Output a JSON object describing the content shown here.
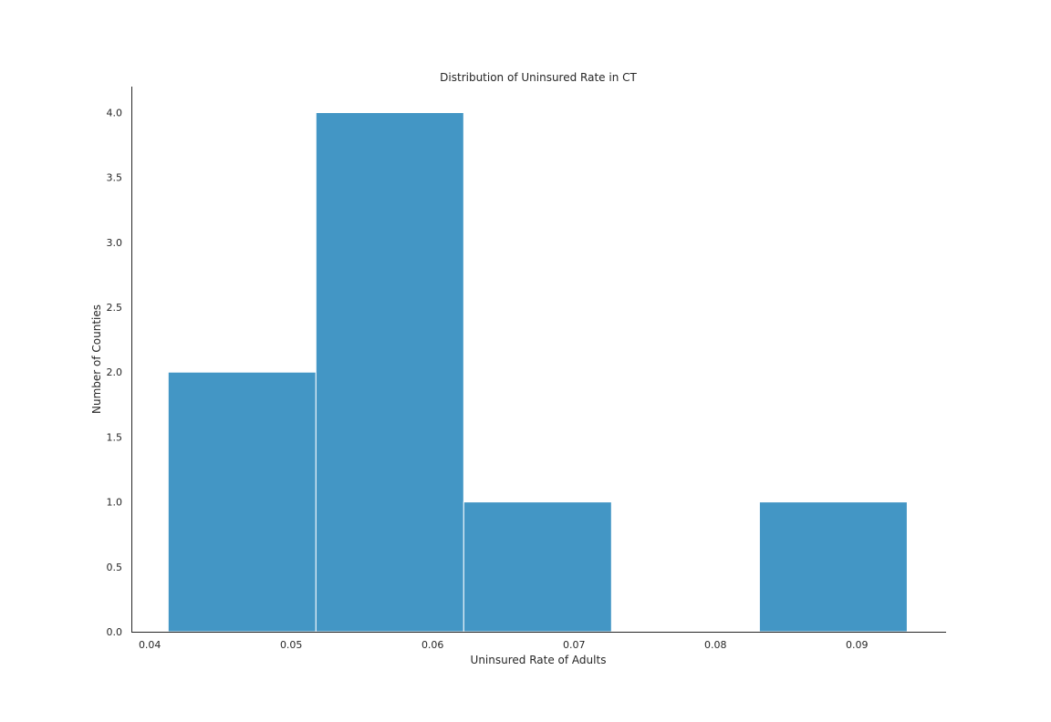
{
  "chart_data": {
    "type": "bar",
    "title": "Distribution of Uninsured Rate in CT",
    "xlabel": "Uninsured Rate of Adults",
    "ylabel": "Number of Counties",
    "bins": [
      {
        "x0": 0.0413,
        "x1": 0.05175,
        "count": 2
      },
      {
        "x0": 0.05175,
        "x1": 0.0622,
        "count": 4
      },
      {
        "x0": 0.0622,
        "x1": 0.07265,
        "count": 1
      },
      {
        "x0": 0.07265,
        "x1": 0.0831,
        "count": 0
      },
      {
        "x0": 0.0831,
        "x1": 0.09355,
        "count": 1
      }
    ],
    "xlim": [
      0.0387,
      0.0963
    ],
    "ylim": [
      0,
      4.2
    ],
    "xticks": [
      0.04,
      0.05,
      0.06,
      0.07,
      0.08,
      0.09
    ],
    "xtick_labels": [
      "0.04",
      "0.05",
      "0.06",
      "0.07",
      "0.08",
      "0.09"
    ],
    "yticks": [
      0,
      0.5,
      1,
      1.5,
      2,
      2.5,
      3,
      3.5,
      4
    ],
    "ytick_labels": [
      "0.0",
      "0.5",
      "1.0",
      "1.5",
      "2.0",
      "2.5",
      "3.0",
      "3.5",
      "4.0"
    ],
    "bar_color": "#4396c5",
    "grid": false,
    "legend": "none"
  }
}
